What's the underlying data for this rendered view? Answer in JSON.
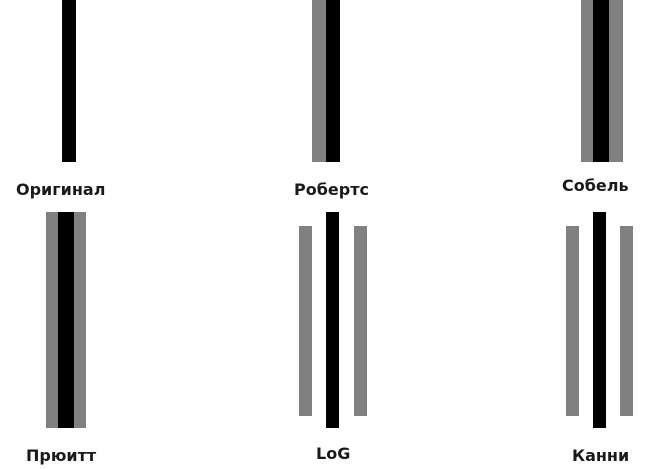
{
  "labels": {
    "original": "Оригинал",
    "roberts": "Робертс",
    "sobel": "Собель",
    "prewitt": "Прюитт",
    "log": "LoG",
    "canny": "Канни"
  },
  "colors": {
    "black": "#000000",
    "gray": "#808080",
    "background": "#ffffff"
  }
}
